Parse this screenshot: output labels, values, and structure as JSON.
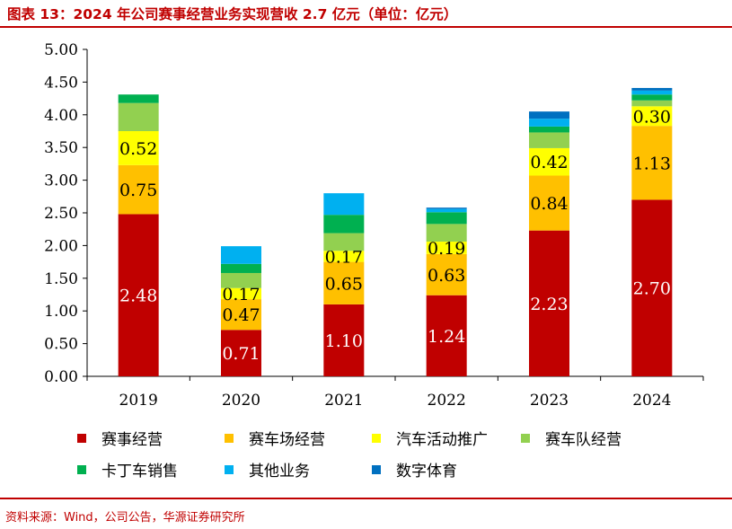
{
  "title": "图表 13：2024 年公司赛事经营业务实现营收 2.7 亿元（单位：亿元）",
  "source": "资料来源：Wind，公司公告，华源证券研究所",
  "chart_data": {
    "type": "bar",
    "stacked": true,
    "categories": [
      "2019",
      "2020",
      "2021",
      "2022",
      "2023",
      "2024"
    ],
    "ylim": [
      0,
      5
    ],
    "yticks": [
      "0.00",
      "0.50",
      "1.00",
      "1.50",
      "2.00",
      "2.50",
      "3.00",
      "3.50",
      "4.00",
      "4.50",
      "5.00"
    ],
    "grid": false,
    "legend_position": "bottom",
    "series": [
      {
        "name": "赛事经营",
        "color": "#c00000",
        "values": [
          2.48,
          0.71,
          1.1,
          1.24,
          2.23,
          2.7
        ],
        "labels": [
          "2.48",
          "0.71",
          "1.10",
          "1.24",
          "2.23",
          "2.70"
        ],
        "label_color": "#ffffff"
      },
      {
        "name": "赛车场经营",
        "color": "#ffc000",
        "values": [
          0.75,
          0.47,
          0.65,
          0.63,
          0.84,
          1.13
        ],
        "labels": [
          "0.75",
          "0.47",
          "0.65",
          "0.63",
          "0.84",
          "1.13"
        ],
        "label_color": "#000000"
      },
      {
        "name": "汽车活动推广",
        "color": "#ffff00",
        "values": [
          0.52,
          0.17,
          0.17,
          0.19,
          0.42,
          0.3
        ],
        "labels": [
          "0.52",
          "0.17",
          "0.17",
          "0.19",
          "0.42",
          "0.30"
        ],
        "label_color": "#000000"
      },
      {
        "name": "赛车队经营",
        "color": "#92d050",
        "values": [
          0.43,
          0.23,
          0.27,
          0.27,
          0.24,
          0.09
        ],
        "labels": [],
        "label_color": "#000000"
      },
      {
        "name": "卡丁车销售",
        "color": "#00b050",
        "values": [
          0.13,
          0.14,
          0.28,
          0.18,
          0.09,
          0.09
        ],
        "labels": [],
        "label_color": "#000000"
      },
      {
        "name": "其他业务",
        "color": "#00b0f0",
        "values": [
          0,
          0.27,
          0.33,
          0.05,
          0.12,
          0.06
        ],
        "labels": [],
        "label_color": "#000000"
      },
      {
        "name": "数字体育",
        "color": "#0070c0",
        "values": [
          0,
          0,
          0,
          0.02,
          0.11,
          0.04
        ],
        "labels": [],
        "label_color": "#000000"
      }
    ]
  }
}
